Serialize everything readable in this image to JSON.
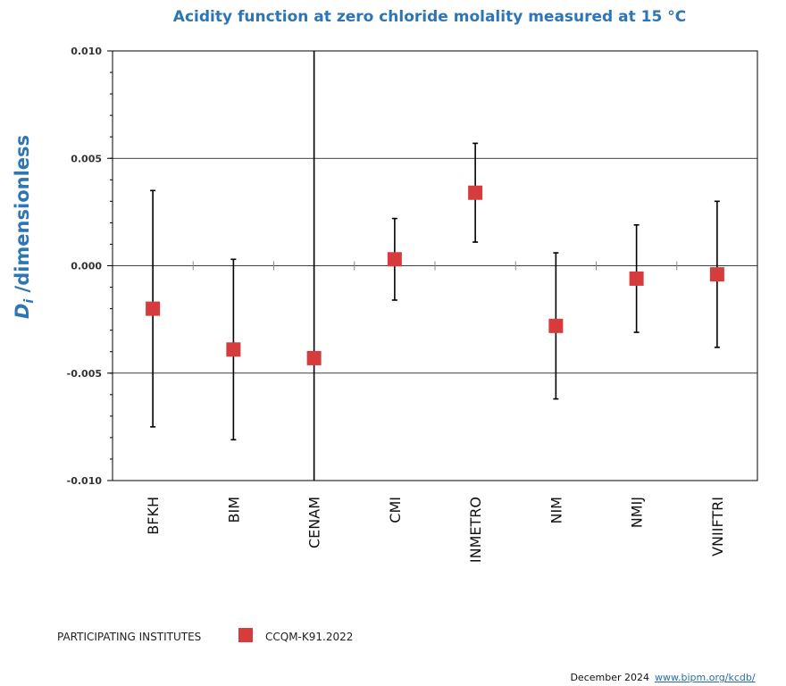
{
  "chart_data": {
    "type": "scatter",
    "title": "Acidity function at zero chloride molality measured at 15 °C",
    "ylabel_symbol": "D",
    "ylabel_subscript": "i",
    "ylabel_text": " /dimensionless",
    "xlabel": "",
    "ylim": [
      -0.01,
      0.01
    ],
    "yticks": [
      "0.010",
      "0.005",
      "0.000",
      "-0.005",
      "-0.010"
    ],
    "ytick_values": [
      0.01,
      0.005,
      0.0,
      -0.005,
      -0.01
    ],
    "grid": true,
    "categories": [
      "BFKH",
      "BIM",
      "CENAM",
      "CMI",
      "INMETRO",
      "NIM",
      "NMIJ",
      "VNIIFTRI"
    ],
    "series": [
      {
        "name": "CCQM-K91.2022",
        "values": [
          -0.002,
          -0.0039,
          -0.0043,
          0.0003,
          0.0034,
          -0.0028,
          -0.0006,
          -0.0004
        ],
        "err_low": [
          -0.0075,
          -0.0081,
          -0.01,
          -0.0016,
          0.0011,
          -0.0062,
          -0.0031,
          -0.0038
        ],
        "err_high": [
          0.0035,
          0.0003,
          0.01,
          0.0022,
          0.0057,
          0.0006,
          0.0019,
          0.003
        ]
      }
    ],
    "legend_heading": "PARTICIPATING INSTITUTES",
    "legend_placement": "bottom-left"
  },
  "footer": {
    "date": "December 2024",
    "link": "www.bipm.org/kcdb/"
  },
  "colors": {
    "title": "#2e75b6",
    "marker": "#d63c3c",
    "axis": "#000000",
    "grid": "#000000"
  }
}
